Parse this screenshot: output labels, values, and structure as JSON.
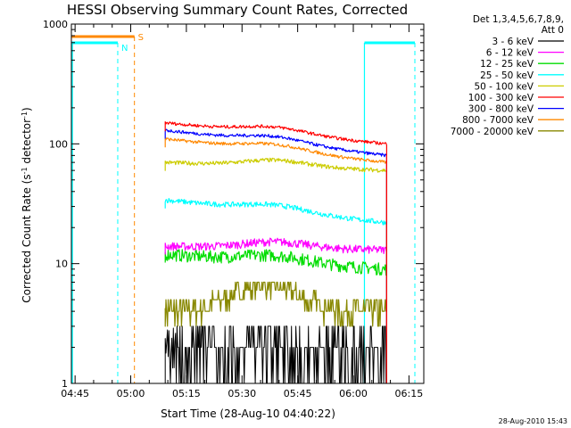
{
  "chart_data": {
    "type": "line",
    "title": "HESSI Observing Summary Count Rates, Corrected",
    "xlabel": "Start Time (28-Aug-10 04:40:22)",
    "ylabel_main": "Corrected Count Rate (s",
    "ylabel_sup1": "-1",
    "ylabel_mid": " detector",
    "ylabel_sup2": "-1",
    "ylabel_end": ")",
    "y_scale": "log",
    "ylim": [
      1,
      1000
    ],
    "y_ticks": [
      {
        "value": 1,
        "label": "1"
      },
      {
        "value": 10,
        "label": "10"
      },
      {
        "value": 100,
        "label": "100"
      },
      {
        "value": 1000,
        "label": "1000"
      }
    ],
    "x_range_minutes": [
      4.0,
      99.0
    ],
    "x_ticks": [
      {
        "value": 45,
        "label": "04:45"
      },
      {
        "value": 60,
        "label": "05:00"
      },
      {
        "value": 75,
        "label": "05:15"
      },
      {
        "value": 90,
        "label": "05:30"
      },
      {
        "value": 105,
        "label": "05:45"
      },
      {
        "value": 120,
        "label": "06:00"
      },
      {
        "value": 135,
        "label": "06:15"
      }
    ],
    "x_tick_minutes_since_0440": [
      5,
      20,
      35,
      50,
      65,
      80,
      95
    ],
    "legend": {
      "header1": "Det 1,3,4,5,6,7,8,9,",
      "header2": "Att 0",
      "placement": "top-right-outside"
    },
    "data_interval": {
      "start": "05:09",
      "end": "06:09"
    },
    "series": [
      {
        "name": "3 - 6 keV",
        "color": "#000000",
        "start": 1.0,
        "end": 1.0,
        "range": [
          1,
          3
        ],
        "style": "spiky"
      },
      {
        "name": "6 - 12 keV",
        "color": "#ff00ff",
        "start": 14,
        "end": 13,
        "noise": 0.08
      },
      {
        "name": "12 - 25 keV",
        "color": "#00dd00",
        "start": 12,
        "end": 9,
        "noise": 0.12
      },
      {
        "name": "25 - 50 keV",
        "color": "#00ffff",
        "start": 34,
        "end": 22,
        "noise": 0.05
      },
      {
        "name": "50 - 100 keV",
        "color": "#cccc00",
        "start": 70,
        "end": 60,
        "noise": 0.04
      },
      {
        "name": "100 - 300 keV",
        "color": "#ff0000",
        "start": 150,
        "end": 100,
        "noise": 0.03
      },
      {
        "name": "300 - 800 keV",
        "color": "#0000ff",
        "start": 130,
        "end": 80,
        "noise": 0.03
      },
      {
        "name": "800 - 7000 keV",
        "color": "#ff8800",
        "start": 110,
        "end": 70,
        "noise": 0.03
      },
      {
        "name": "7000 - 20000 keV",
        "color": "#888800",
        "start": 5,
        "end": 4,
        "range": [
          3,
          7
        ],
        "style": "stepped"
      }
    ],
    "flags": [
      {
        "label": "N",
        "color": "#00ffff",
        "description": "night"
      },
      {
        "label": "S",
        "color": "#ff8800",
        "description": "SAA"
      }
    ],
    "timestamp": "28-Aug-2010 15:43"
  }
}
